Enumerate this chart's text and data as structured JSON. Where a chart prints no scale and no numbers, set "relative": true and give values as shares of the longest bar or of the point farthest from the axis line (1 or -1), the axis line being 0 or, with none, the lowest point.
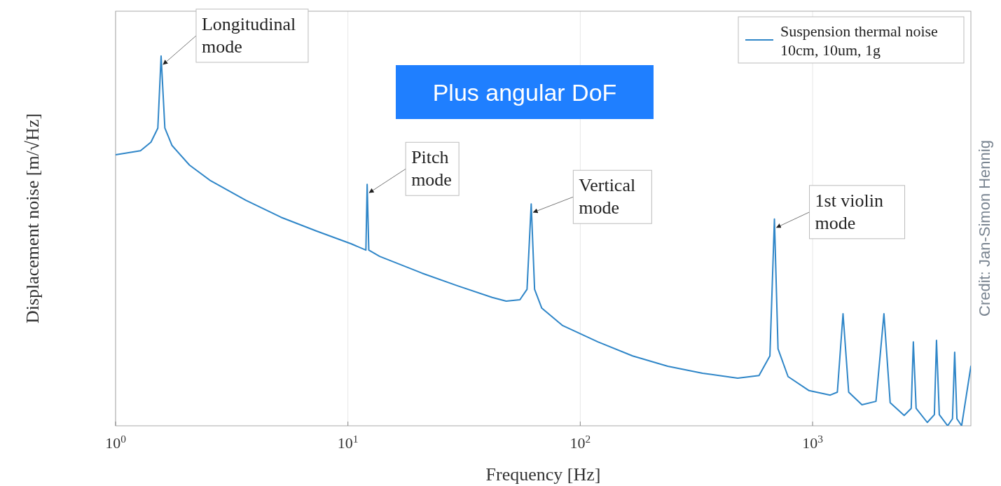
{
  "chart_data": {
    "type": "line",
    "xlabel": "Frequency [Hz]",
    "ylabel": "Displacement noise [m/√Hz]",
    "relative": true,
    "log": "x",
    "grid": "x",
    "legend": "top right",
    "xlim": [
      1,
      4800
    ],
    "xticks": [
      {
        "value": 1,
        "label": "10$^{0}$"
      },
      {
        "value": 10,
        "label": "10$^{1}$"
      },
      {
        "value": 100,
        "label": "10$^{2}$"
      },
      {
        "value": 1000,
        "label": "10$^{3}$"
      }
    ],
    "series": [
      {
        "name": "Suspension thermal noise\n10cm, 10um, 1g",
        "color": "#2f86c8",
        "x": [
          1,
          1.28,
          1.42,
          1.52,
          1.57,
          1.63,
          1.75,
          2.08,
          2.56,
          3.63,
          5.15,
          7.3,
          10.35,
          11.95,
          12.1,
          12.3,
          13.7,
          20.8,
          29.5,
          41.8,
          48,
          55,
          59,
          61.5,
          63.6,
          68.3,
          84,
          119,
          168,
          238,
          336,
          476,
          588,
          655,
          685,
          710,
          784,
          966,
          1191,
          1278,
          1352,
          1430,
          1631,
          1874,
          2028,
          2157,
          2478,
          2657,
          2714,
          2790,
          3116,
          3343,
          3414,
          3510,
          3813,
          4000,
          4088,
          4180,
          4380,
          4800
        ],
        "values": [
          0.733,
          0.744,
          0.767,
          0.805,
          1.0,
          0.805,
          0.758,
          0.705,
          0.663,
          0.61,
          0.564,
          0.527,
          0.492,
          0.475,
          0.653,
          0.475,
          0.458,
          0.413,
          0.379,
          0.347,
          0.337,
          0.341,
          0.369,
          0.6,
          0.369,
          0.318,
          0.271,
          0.227,
          0.189,
          0.161,
          0.142,
          0.129,
          0.136,
          0.189,
          0.559,
          0.208,
          0.133,
          0.095,
          0.083,
          0.091,
          0.303,
          0.091,
          0.057,
          0.066,
          0.303,
          0.0625,
          0.028,
          0.047,
          0.227,
          0.047,
          0.009,
          0.03,
          0.231,
          0.03,
          0.0,
          0.019,
          0.199,
          0.019,
          0.0,
          0.161
        ]
      }
    ],
    "annotations": [
      {
        "text": "Longitudinal\nmode",
        "x": 1.57,
        "y": 1.0
      },
      {
        "text": "Pitch\nmode",
        "x": 12.1,
        "y": 0.653
      },
      {
        "text": "Vertical\nmode",
        "x": 61.5,
        "y": 0.6
      },
      {
        "text": "1st violin\nmode",
        "x": 685,
        "y": 0.559
      },
      "Plus angular DoF",
      "Credit: Jan-Simon Hennig"
    ]
  }
}
